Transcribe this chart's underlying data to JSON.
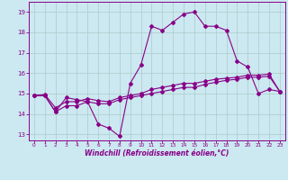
{
  "xlabel": "Windchill (Refroidissement éolien,°C)",
  "background_color": "#cce8f0",
  "grid_color": "#aacccc",
  "line_color": "#880088",
  "x_ticks": [
    0,
    1,
    2,
    3,
    4,
    5,
    6,
    7,
    8,
    9,
    10,
    11,
    12,
    13,
    14,
    15,
    16,
    17,
    18,
    19,
    20,
    21,
    22,
    23
  ],
  "y_ticks": [
    13,
    14,
    15,
    16,
    17,
    18,
    19
  ],
  "ylim": [
    12.7,
    19.5
  ],
  "xlim": [
    -0.5,
    23.5
  ],
  "series1_x": [
    0,
    1,
    2,
    3,
    4,
    5,
    6,
    7,
    8,
    9,
    10,
    11,
    12,
    13,
    14,
    15,
    16,
    17,
    18,
    19,
    20,
    21,
    22,
    23
  ],
  "series1_y": [
    14.9,
    14.9,
    14.1,
    14.8,
    14.7,
    14.6,
    13.5,
    13.3,
    12.9,
    15.5,
    16.4,
    18.3,
    18.1,
    18.5,
    18.9,
    19.0,
    18.3,
    18.3,
    18.1,
    16.6,
    16.3,
    15.0,
    15.2,
    15.1
  ],
  "series2_x": [
    0,
    1,
    2,
    3,
    4,
    5,
    6,
    7,
    8,
    9,
    10,
    11,
    12,
    13,
    14,
    15,
    16,
    17,
    18,
    19,
    20,
    21,
    22,
    23
  ],
  "series2_y": [
    14.9,
    14.95,
    14.3,
    14.6,
    14.6,
    14.75,
    14.65,
    14.6,
    14.8,
    14.9,
    15.0,
    15.2,
    15.3,
    15.4,
    15.5,
    15.5,
    15.6,
    15.7,
    15.75,
    15.8,
    15.9,
    15.9,
    15.95,
    15.1
  ],
  "series3_x": [
    0,
    1,
    2,
    3,
    4,
    5,
    6,
    7,
    8,
    9,
    10,
    11,
    12,
    13,
    14,
    15,
    16,
    17,
    18,
    19,
    20,
    21,
    22,
    23
  ],
  "series3_y": [
    14.9,
    14.9,
    14.1,
    14.4,
    14.4,
    14.6,
    14.5,
    14.5,
    14.7,
    14.8,
    14.9,
    15.0,
    15.1,
    15.2,
    15.3,
    15.3,
    15.45,
    15.55,
    15.65,
    15.7,
    15.8,
    15.8,
    15.85,
    15.1
  ]
}
